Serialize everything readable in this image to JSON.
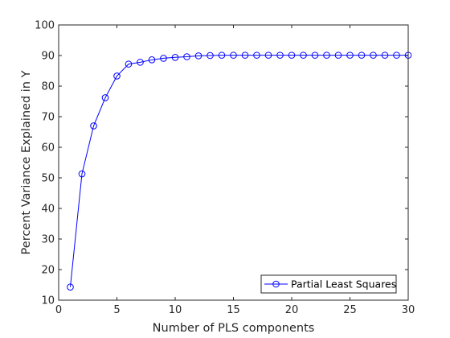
{
  "chart_data": {
    "type": "line",
    "title": "",
    "xlabel": "Number of PLS components",
    "ylabel": "Percent Variance Explained in Y",
    "xlim": [
      0,
      30
    ],
    "ylim": [
      10,
      100
    ],
    "xticks": [
      0,
      5,
      10,
      15,
      20,
      25,
      30
    ],
    "yticks": [
      10,
      20,
      30,
      40,
      50,
      60,
      70,
      80,
      90,
      100
    ],
    "grid": false,
    "legend_position": "bottom-right",
    "marker": "circle",
    "series_color": "#0000ff",
    "x": [
      1,
      2,
      3,
      4,
      5,
      6,
      7,
      8,
      9,
      10,
      11,
      12,
      13,
      14,
      15,
      16,
      17,
      18,
      19,
      20,
      21,
      22,
      23,
      24,
      25,
      26,
      27,
      28,
      29,
      30
    ],
    "series": [
      {
        "name": "Partial Least Squares",
        "values": [
          14.3,
          51.3,
          67.0,
          76.2,
          83.3,
          87.2,
          87.8,
          88.6,
          89.1,
          89.4,
          89.6,
          89.9,
          90.0,
          90.1,
          90.1,
          90.1,
          90.1,
          90.1,
          90.1,
          90.1,
          90.1,
          90.1,
          90.1,
          90.1,
          90.1,
          90.1,
          90.1,
          90.1,
          90.1,
          90.1
        ]
      }
    ]
  }
}
